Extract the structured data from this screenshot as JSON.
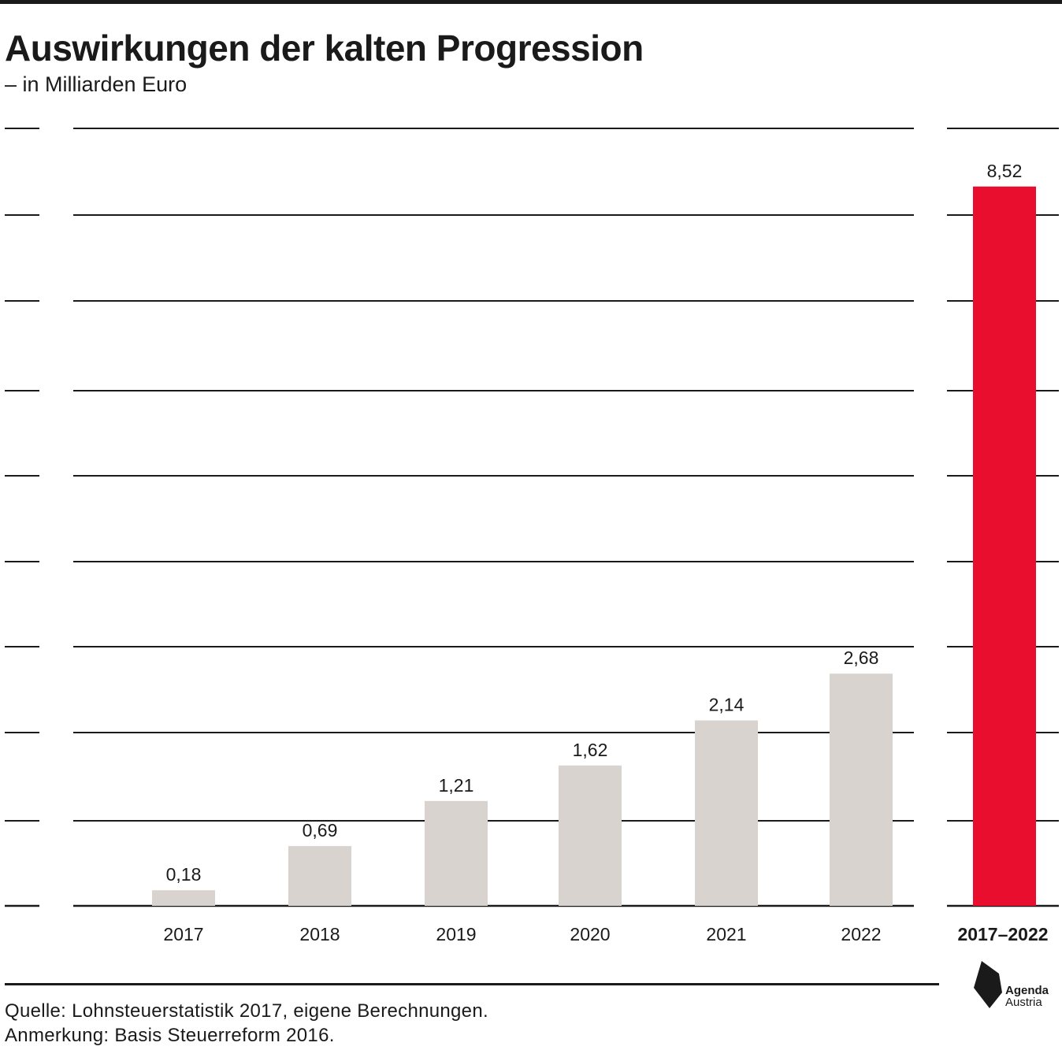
{
  "header": {
    "title": "Auswirkungen der kalten Progression",
    "subtitle": "– in Milliarden Euro"
  },
  "footer": {
    "source": "Quelle: Lohnsteuerstatistik 2017, eigene Berechnungen.",
    "note": "Anmerkung: Basis Steuerreform 2016."
  },
  "logo": {
    "line1": "Agenda",
    "line2": "Austria"
  },
  "colors": {
    "year_bar": "#d8d3cf",
    "total_bar": "#e90d2e",
    "gridline": "#1a1a1a"
  },
  "chart_data": {
    "type": "bar",
    "title": "Auswirkungen der kalten Progression",
    "ylabel": "",
    "xlabel": "",
    "ylim": [
      0,
      9.2
    ],
    "grid": true,
    "categories": [
      "2017",
      "2018",
      "2019",
      "2020",
      "2021",
      "2022"
    ],
    "values": [
      0.18,
      0.69,
      1.21,
      1.62,
      2.14,
      2.68
    ],
    "value_labels": [
      "0,18",
      "0,69",
      "1,21",
      "1,62",
      "2,14",
      "2,68"
    ],
    "total": {
      "category": "2017–2022",
      "value": 8.52,
      "value_label": "8,52"
    }
  }
}
